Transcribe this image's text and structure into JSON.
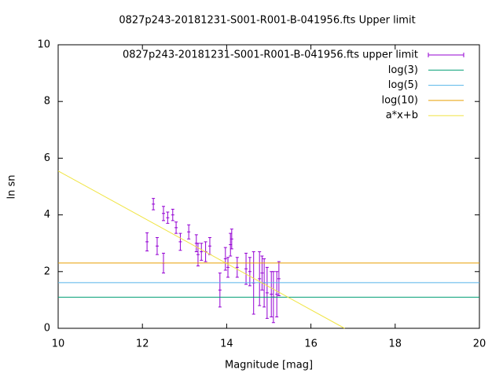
{
  "chart_data": {
    "type": "errorbar",
    "title": "0827p243-20181231-S001-R001-B-041956.fts Upper limit",
    "xlabel": "Magnitude [mag]",
    "ylabel": "ln sn",
    "xlim": [
      10,
      20
    ],
    "ylim": [
      0,
      10
    ],
    "xticks": [
      10,
      12,
      14,
      16,
      18,
      20
    ],
    "yticks": [
      0,
      2,
      4,
      6,
      8,
      10
    ],
    "grid": false,
    "legend": "top-right",
    "series": [
      {
        "name": "0827p243-20181231-S001-R001-B-041956.fts upper limit",
        "kind": "errorbar",
        "color": "#9400d3",
        "x": [
          12.11,
          12.26,
          12.35,
          12.5,
          12.5,
          12.6,
          12.72,
          12.8,
          12.9,
          13.1,
          13.28,
          13.32,
          13.4,
          13.5,
          13.6,
          13.84,
          13.97,
          14.03,
          14.09,
          14.12,
          14.25,
          14.46,
          14.55,
          14.64,
          14.78,
          14.84,
          14.89,
          14.96,
          15.06,
          15.11,
          15.19,
          15.24
        ],
        "values": [
          3.05,
          4.38,
          2.9,
          4.05,
          2.3,
          3.9,
          4.0,
          3.55,
          3.05,
          3.4,
          3.0,
          2.6,
          2.7,
          2.7,
          2.9,
          1.35,
          2.45,
          2.15,
          2.95,
          3.15,
          2.15,
          2.1,
          2.0,
          1.6,
          1.75,
          1.95,
          1.6,
          1.25,
          1.2,
          1.1,
          1.2,
          1.75
        ],
        "errors": [
          0.32,
          0.2,
          0.3,
          0.25,
          0.35,
          0.2,
          0.2,
          0.2,
          0.3,
          0.25,
          0.3,
          0.4,
          0.3,
          0.35,
          0.3,
          0.6,
          0.4,
          0.35,
          0.4,
          0.35,
          0.35,
          0.55,
          0.5,
          1.1,
          0.95,
          0.6,
          0.85,
          0.9,
          0.8,
          0.9,
          0.8,
          0.6
        ]
      },
      {
        "name": "log(3)",
        "kind": "hline",
        "color": "#009e73",
        "values": [
          1.0986
        ]
      },
      {
        "name": "log(5)",
        "kind": "hline",
        "color": "#56b4e9",
        "values": [
          1.6094
        ]
      },
      {
        "name": "log(10)",
        "kind": "hline",
        "color": "#e69f00",
        "values": [
          2.3026
        ]
      },
      {
        "name": "a*x+b",
        "kind": "line",
        "color": "#f0e442",
        "x": [
          10,
          16.8
        ],
        "values": [
          5.55,
          0
        ]
      }
    ]
  }
}
